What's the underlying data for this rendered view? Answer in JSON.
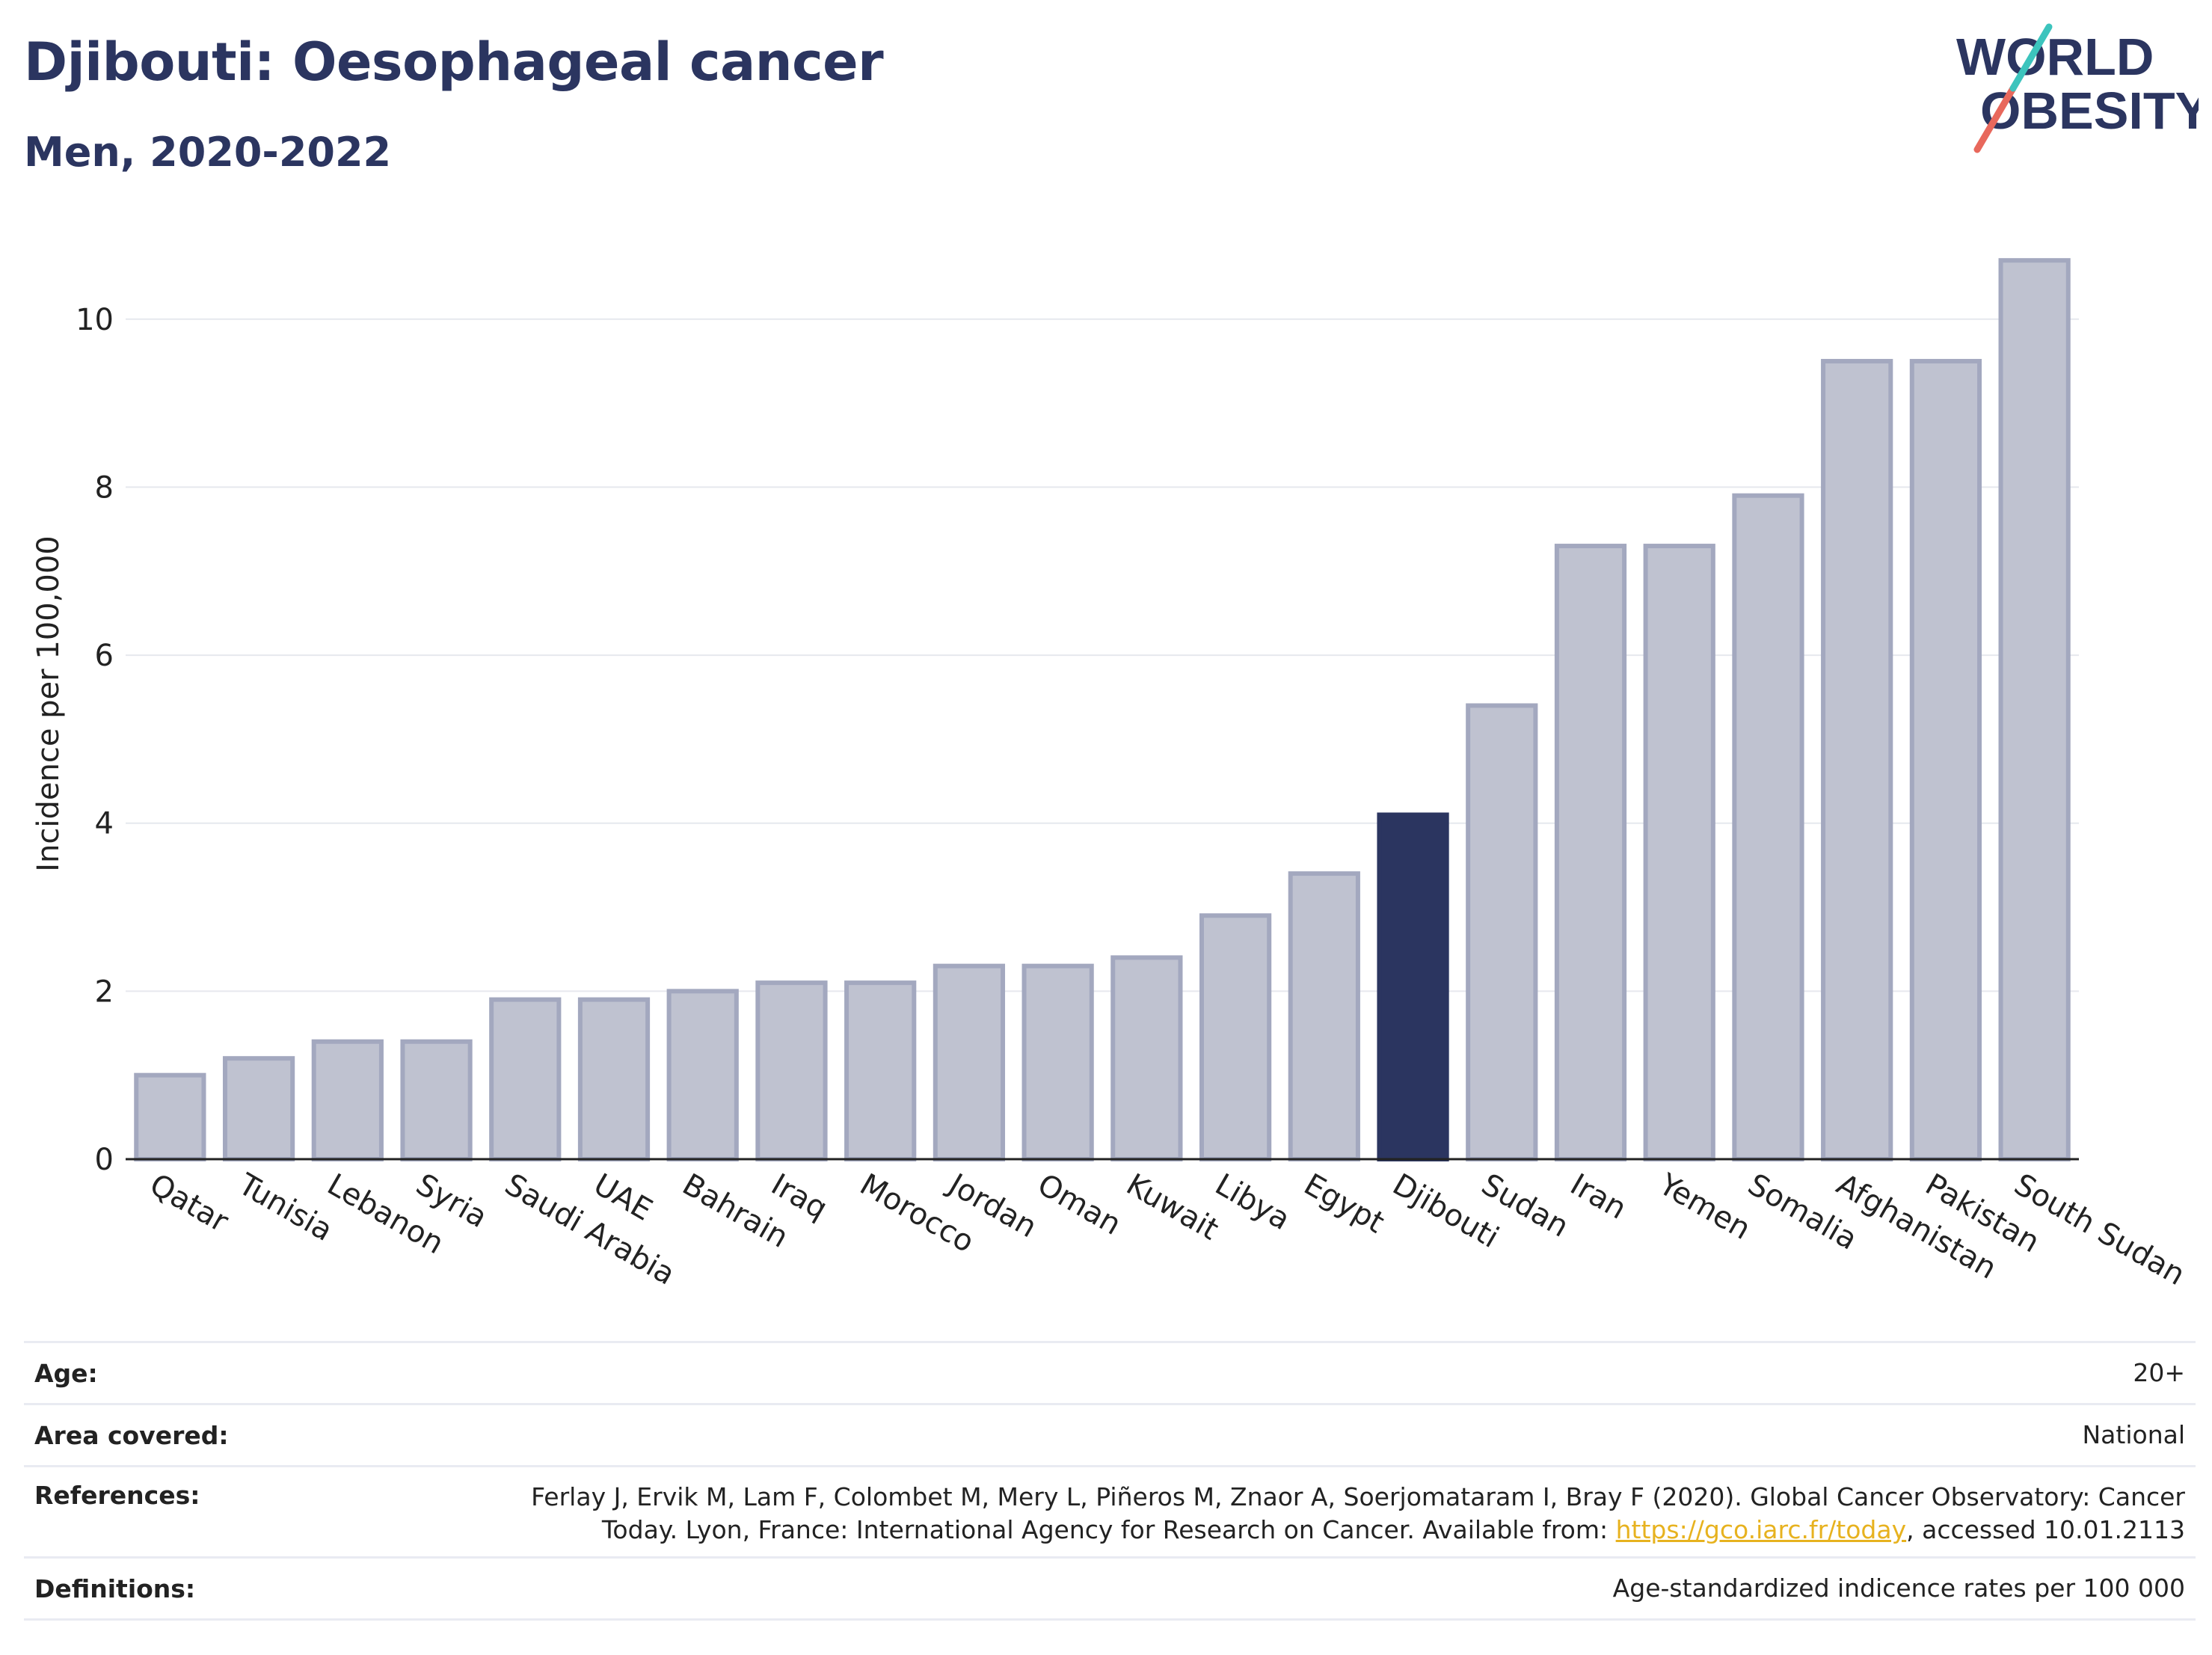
{
  "title": "Djibouti: Oesophageal cancer",
  "subtitle": "Men, 2020-2022",
  "logo": {
    "line1": "WORLD",
    "line2": "OBESITY"
  },
  "colors": {
    "bar_default": "#bfc2d0",
    "bar_default_stroke": "#a3a8bf",
    "bar_highlight": "#2b3560",
    "title": "#2b3560",
    "gridline": "#e6e8ee",
    "link": "#e7b21f",
    "logo_teal": "#3cc4bd",
    "logo_coral": "#e8685c"
  },
  "chart_data": {
    "type": "bar",
    "categories": [
      "Qatar",
      "Tunisia",
      "Lebanon",
      "Syria",
      "Saudi Arabia",
      "UAE",
      "Bahrain",
      "Iraq",
      "Morocco",
      "Jordan",
      "Oman",
      "Kuwait",
      "Libya",
      "Egypt",
      "Djibouti",
      "Sudan",
      "Iran",
      "Yemen",
      "Somalia",
      "Afghanistan",
      "Pakistan",
      "South Sudan"
    ],
    "values": [
      1.0,
      1.2,
      1.4,
      1.4,
      1.9,
      1.9,
      2.0,
      2.1,
      2.1,
      2.3,
      2.3,
      2.4,
      2.9,
      3.4,
      4.1,
      5.4,
      7.3,
      7.3,
      7.9,
      9.5,
      9.5,
      10.7
    ],
    "highlight": "Djibouti",
    "ylabel": "Incidence per 100,000",
    "yticks": [
      0,
      2,
      4,
      6,
      8,
      10
    ],
    "ylim": [
      0,
      11.2
    ],
    "grid": true
  },
  "info": {
    "age": {
      "label": "Age:",
      "value": "20+"
    },
    "area": {
      "label": "Area covered:",
      "value": "National"
    },
    "references": {
      "label": "References:",
      "line1": "Ferlay J, Ervik M, Lam F, Colombet M, Mery L, Piñeros M, Znaor A, Soerjomataram I, Bray F (2020). Global Cancer Observatory: Cancer",
      "line2_prefix": "Today. Lyon, France: International Agency for Research on Cancer. Available from: ",
      "link": "https://gco.iarc.fr/today",
      "line2_suffix": ", accessed 10.01.2113"
    },
    "definitions": {
      "label": "Definitions:",
      "value": "Age-standardized indicence rates per 100 000"
    }
  }
}
